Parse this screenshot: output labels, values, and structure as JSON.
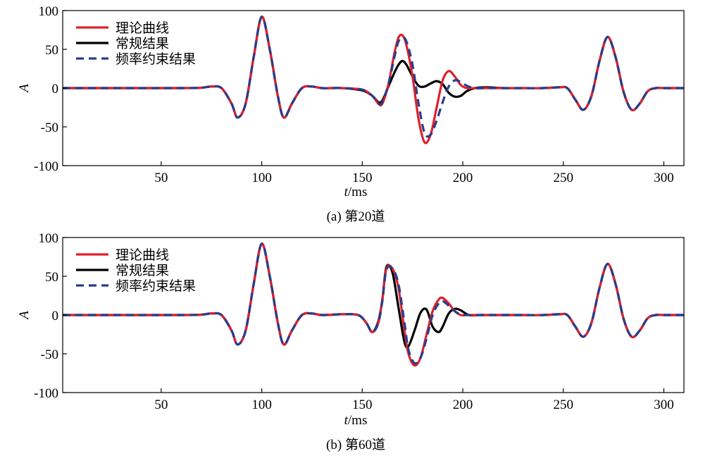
{
  "chart_data": [
    {
      "type": "line",
      "caption": "(a) 第20道",
      "ylabel": "A",
      "xlabel": "t/ms",
      "xlim": [
        1,
        310
      ],
      "ylim": [
        -100,
        100
      ],
      "xticks": [
        50,
        100,
        150,
        200,
        250,
        300
      ],
      "yticks": [
        -100,
        -50,
        0,
        50,
        100
      ],
      "grid": false,
      "legend_position": "top-left",
      "series": [
        {
          "name": "理论曲线",
          "color": "#e0202a",
          "style": "solid",
          "x": [
            1,
            60,
            70,
            75,
            80,
            85,
            88,
            92,
            96,
            100,
            104,
            108,
            111,
            115,
            120,
            125,
            130,
            140,
            150,
            155,
            158,
            160,
            163,
            166,
            168,
            170,
            172,
            175,
            178,
            181,
            184,
            187,
            190,
            193,
            196,
            199,
            202,
            206,
            212,
            220,
            230,
            240,
            248,
            252,
            256,
            260,
            264,
            268,
            272,
            276,
            280,
            284,
            288,
            292,
            296,
            300,
            310
          ],
          "y": [
            0,
            0,
            0.5,
            2,
            0,
            -20,
            -38,
            -20,
            40,
            92,
            50,
            -10,
            -38,
            -20,
            0,
            2,
            0,
            0,
            -2,
            -10,
            -20,
            -20,
            5,
            45,
            65,
            68,
            55,
            15,
            -40,
            -70,
            -60,
            -25,
            10,
            22,
            15,
            4,
            0,
            0,
            0,
            0,
            0,
            0,
            1,
            0,
            -15,
            -28,
            -10,
            35,
            66,
            40,
            -5,
            -28,
            -20,
            -4,
            0,
            0,
            0
          ]
        },
        {
          "name": "常规结果",
          "color": "#000000",
          "style": "solid",
          "x": [
            1,
            60,
            70,
            75,
            80,
            85,
            88,
            92,
            96,
            100,
            104,
            108,
            111,
            115,
            120,
            125,
            130,
            140,
            150,
            155,
            158,
            160,
            163,
            166,
            168,
            170,
            172,
            175,
            178,
            181,
            184,
            187,
            190,
            193,
            196,
            199,
            202,
            206,
            212,
            220,
            230,
            240,
            248,
            252,
            256,
            260,
            264,
            268,
            272,
            276,
            280,
            284,
            288,
            292,
            296,
            300,
            310
          ],
          "y": [
            0,
            0,
            0.5,
            2,
            0,
            -20,
            -38,
            -20,
            40,
            92,
            50,
            -10,
            -38,
            -20,
            0,
            2,
            0,
            0,
            -3,
            -10,
            -18,
            -16,
            2,
            20,
            30,
            35,
            30,
            15,
            3,
            2,
            6,
            9,
            5,
            -6,
            -11,
            -10,
            -4,
            0,
            1,
            0,
            0,
            0,
            1,
            0,
            -15,
            -28,
            -10,
            35,
            66,
            40,
            -5,
            -28,
            -20,
            -4,
            0,
            0,
            0
          ]
        },
        {
          "name": "频率约束结果",
          "color": "#2a3c8f",
          "style": "dashed",
          "x": [
            1,
            60,
            70,
            75,
            80,
            85,
            88,
            92,
            96,
            100,
            104,
            108,
            111,
            115,
            120,
            125,
            130,
            140,
            150,
            155,
            158,
            160,
            163,
            166,
            168,
            170,
            172,
            175,
            178,
            181,
            184,
            187,
            190,
            193,
            196,
            199,
            202,
            206,
            212,
            220,
            230,
            240,
            248,
            252,
            256,
            260,
            264,
            268,
            272,
            276,
            280,
            284,
            288,
            292,
            296,
            300,
            310
          ],
          "y": [
            0,
            0,
            0.5,
            2,
            0,
            -20,
            -38,
            -20,
            40,
            92,
            50,
            -10,
            -38,
            -20,
            0,
            2,
            0,
            0,
            -2,
            -10,
            -20,
            -18,
            5,
            40,
            60,
            65,
            60,
            30,
            -20,
            -58,
            -60,
            -42,
            -18,
            2,
            10,
            8,
            3,
            0,
            0,
            0,
            0,
            0,
            1,
            0,
            -15,
            -28,
            -10,
            35,
            66,
            40,
            -5,
            -28,
            -20,
            -4,
            0,
            0,
            0
          ]
        }
      ]
    },
    {
      "type": "line",
      "caption": "(b) 第60道",
      "ylabel": "A",
      "xlabel": "t/ms",
      "xlim": [
        1,
        310
      ],
      "ylim": [
        -100,
        100
      ],
      "xticks": [
        50,
        100,
        150,
        200,
        250,
        300
      ],
      "yticks": [
        -100,
        -50,
        0,
        50,
        100
      ],
      "grid": false,
      "legend_position": "top-left",
      "series": [
        {
          "name": "理论曲线",
          "color": "#e0202a",
          "style": "solid",
          "x": [
            1,
            60,
            70,
            75,
            80,
            85,
            88,
            92,
            96,
            100,
            104,
            108,
            111,
            115,
            120,
            125,
            130,
            140,
            148,
            152,
            155,
            158,
            160,
            162,
            165,
            168,
            171,
            173,
            176,
            179,
            182,
            185,
            188,
            190,
            193,
            196,
            199,
            203,
            208,
            215,
            230,
            240,
            248,
            252,
            256,
            260,
            264,
            268,
            272,
            276,
            280,
            284,
            288,
            292,
            296,
            300,
            310
          ],
          "y": [
            0,
            0,
            0.5,
            2,
            0,
            -20,
            -38,
            -20,
            40,
            92,
            50,
            -10,
            -38,
            -20,
            0,
            2,
            0,
            1,
            0,
            -10,
            -22,
            -10,
            20,
            60,
            60,
            35,
            -20,
            -50,
            -65,
            -55,
            -25,
            5,
            20,
            22,
            15,
            5,
            0,
            0,
            0,
            0,
            0,
            0,
            1,
            0,
            -15,
            -28,
            -10,
            35,
            66,
            40,
            -5,
            -28,
            -20,
            -4,
            0,
            0,
            0
          ]
        },
        {
          "name": "常规结果",
          "color": "#000000",
          "style": "solid",
          "x": [
            1,
            60,
            70,
            75,
            80,
            85,
            88,
            92,
            96,
            100,
            104,
            108,
            111,
            115,
            120,
            125,
            130,
            140,
            148,
            152,
            155,
            158,
            160,
            162,
            165,
            168,
            171,
            173,
            176,
            179,
            182,
            185,
            188,
            190,
            193,
            196,
            199,
            203,
            208,
            215,
            230,
            240,
            248,
            252,
            256,
            260,
            264,
            268,
            272,
            276,
            280,
            284,
            288,
            292,
            296,
            300,
            310
          ],
          "y": [
            0,
            0,
            0.5,
            2,
            0,
            -20,
            -38,
            -20,
            40,
            92,
            50,
            -10,
            -38,
            -20,
            0,
            2,
            0,
            1,
            0,
            -10,
            -22,
            -8,
            20,
            62,
            55,
            10,
            -35,
            -40,
            -20,
            3,
            7,
            -15,
            -22,
            -15,
            2,
            8,
            6,
            0,
            0,
            0,
            0,
            0,
            1,
            0,
            -15,
            -28,
            -10,
            35,
            66,
            40,
            -5,
            -28,
            -20,
            -4,
            0,
            0,
            0
          ]
        },
        {
          "name": "频率约束结果",
          "color": "#2a3c8f",
          "style": "dashed",
          "x": [
            1,
            60,
            70,
            75,
            80,
            85,
            88,
            92,
            96,
            100,
            104,
            108,
            111,
            115,
            120,
            125,
            130,
            140,
            148,
            152,
            155,
            158,
            160,
            162,
            165,
            168,
            171,
            173,
            176,
            179,
            182,
            185,
            188,
            190,
            193,
            196,
            199,
            203,
            208,
            215,
            230,
            240,
            248,
            252,
            256,
            260,
            264,
            268,
            272,
            276,
            280,
            284,
            288,
            292,
            296,
            300,
            310
          ],
          "y": [
            0,
            0,
            0.5,
            2,
            0,
            -20,
            -38,
            -20,
            40,
            92,
            50,
            -10,
            -38,
            -20,
            0,
            2,
            0,
            1,
            0,
            -10,
            -22,
            -10,
            18,
            58,
            60,
            40,
            -10,
            -45,
            -62,
            -55,
            -30,
            0,
            15,
            18,
            12,
            5,
            1,
            0,
            0,
            0,
            0,
            0,
            1,
            0,
            -15,
            -28,
            -10,
            35,
            66,
            40,
            -5,
            -28,
            -20,
            -4,
            0,
            0,
            0
          ]
        }
      ]
    }
  ]
}
